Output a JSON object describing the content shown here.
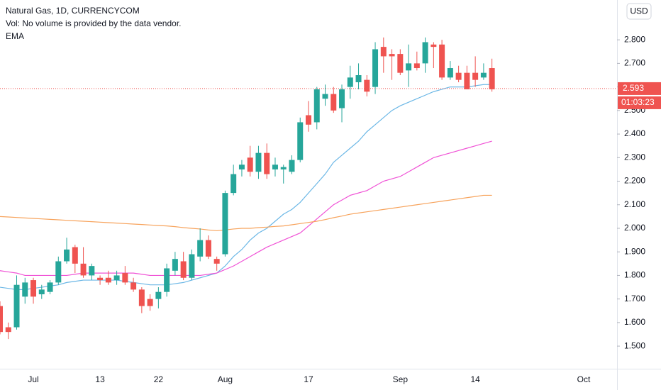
{
  "chart_data": {
    "type": "candlestick",
    "title": "Natural Gas, 1D, CURRENCYCOM",
    "volume_note": "Vol: No volume is provided by the data vendor.",
    "indicator": "EMA",
    "currency": "USD",
    "categories": [
      null,
      null,
      null,
      null,
      "Jul",
      null,
      null,
      null,
      null,
      null,
      null,
      null,
      "13",
      null,
      null,
      null,
      null,
      null,
      null,
      "22",
      null,
      null,
      null,
      null,
      null,
      null,
      null,
      "Aug",
      null,
      null,
      null,
      null,
      null,
      null,
      null,
      null,
      null,
      "17",
      null,
      null,
      null,
      null,
      null,
      null,
      null,
      null,
      null,
      null,
      "Sep",
      null,
      null,
      null,
      null,
      null,
      null,
      null,
      null,
      "14",
      null,
      null,
      null,
      null,
      null,
      null,
      null,
      null,
      null,
      null,
      null,
      null,
      "Oct",
      null,
      null,
      null
    ],
    "open": [
      1.67,
      1.58,
      1.58,
      1.71,
      1.78,
      1.72,
      1.73,
      1.77,
      1.86,
      1.92,
      1.85,
      1.8,
      1.79,
      1.79,
      1.78,
      1.81,
      1.77,
      1.74,
      1.7,
      1.7,
      1.73,
      1.82,
      1.86,
      1.79,
      1.88,
      1.95,
      1.87,
      1.89,
      2.15,
      2.25,
      2.3,
      2.24,
      2.32,
      2.25,
      2.25,
      2.24,
      2.29,
      2.48,
      2.45,
      2.55,
      2.57,
      2.51,
      2.6,
      2.62,
      2.63,
      2.6,
      2.77,
      2.74,
      2.74,
      2.67,
      2.7,
      2.7,
      2.78,
      2.78,
      2.64,
      2.66,
      2.66,
      2.66,
      2.64,
      2.68,
      null,
      null,
      null,
      null,
      null,
      null,
      null,
      null,
      null,
      null,
      null,
      null,
      null,
      null
    ],
    "high": [
      1.69,
      1.6,
      1.8,
      1.79,
      1.79,
      1.76,
      1.78,
      1.88,
      1.96,
      1.93,
      1.92,
      1.85,
      1.8,
      1.82,
      1.82,
      1.84,
      1.79,
      1.75,
      1.72,
      1.75,
      1.85,
      1.9,
      1.9,
      1.91,
      2.0,
      1.97,
      1.88,
      2.16,
      2.27,
      2.29,
      2.35,
      2.35,
      2.36,
      2.3,
      2.27,
      2.31,
      2.47,
      2.54,
      2.6,
      2.61,
      2.6,
      2.61,
      2.69,
      2.7,
      2.65,
      2.79,
      2.81,
      2.76,
      2.76,
      2.78,
      2.75,
      2.81,
      2.79,
      2.8,
      2.71,
      2.69,
      2.69,
      2.73,
      2.7,
      2.72,
      null,
      null,
      null,
      null,
      null,
      null,
      null,
      null,
      null,
      null,
      null,
      null,
      null,
      null
    ],
    "low": [
      1.55,
      1.53,
      1.57,
      1.68,
      1.68,
      1.7,
      1.72,
      1.76,
      1.85,
      1.81,
      1.79,
      1.78,
      1.76,
      1.76,
      1.76,
      1.76,
      1.73,
      1.64,
      1.65,
      1.66,
      1.71,
      1.8,
      1.78,
      1.78,
      1.86,
      1.87,
      1.82,
      1.88,
      2.14,
      2.22,
      2.22,
      2.21,
      2.21,
      2.22,
      2.19,
      2.23,
      2.28,
      2.41,
      2.42,
      2.52,
      2.49,
      2.45,
      2.55,
      2.59,
      2.56,
      2.57,
      2.66,
      2.63,
      2.65,
      2.6,
      2.67,
      2.66,
      2.68,
      2.63,
      2.63,
      2.62,
      2.59,
      2.6,
      2.63,
      2.58,
      null,
      null,
      null,
      null,
      null,
      null,
      null,
      null,
      null,
      null,
      null,
      null,
      null,
      null
    ],
    "close": [
      1.56,
      1.56,
      1.76,
      1.77,
      1.71,
      1.74,
      1.77,
      1.86,
      1.91,
      1.85,
      1.8,
      1.84,
      1.78,
      1.77,
      1.8,
      1.77,
      1.74,
      1.67,
      1.67,
      1.73,
      1.83,
      1.87,
      1.79,
      1.89,
      1.95,
      1.88,
      1.85,
      2.15,
      2.23,
      2.27,
      2.24,
      2.32,
      2.23,
      2.27,
      2.26,
      2.29,
      2.45,
      2.44,
      2.59,
      2.57,
      2.5,
      2.59,
      2.64,
      2.65,
      2.58,
      2.76,
      2.73,
      2.73,
      2.66,
      2.7,
      2.68,
      2.79,
      2.77,
      2.64,
      2.68,
      2.63,
      2.59,
      2.63,
      2.66,
      2.59,
      null,
      null,
      null,
      null,
      null,
      null,
      null,
      null,
      null,
      null,
      null,
      null,
      null,
      null
    ],
    "up_color": "#26a69a",
    "down_color": "#ef5350",
    "series": [
      {
        "color": "#6bb7e6",
        "values": [
          1.75,
          1.745,
          1.74,
          1.74,
          1.745,
          1.75,
          1.755,
          1.76,
          1.77,
          1.775,
          1.78,
          1.78,
          1.78,
          1.78,
          1.78,
          1.775,
          1.77,
          1.765,
          1.76,
          1.76,
          1.76,
          1.765,
          1.77,
          1.78,
          1.79,
          1.8,
          1.81,
          1.84,
          1.88,
          1.91,
          1.95,
          1.98,
          2.0,
          2.03,
          2.06,
          2.08,
          2.11,
          2.15,
          2.19,
          2.23,
          2.28,
          2.31,
          2.34,
          2.37,
          2.41,
          2.44,
          2.47,
          2.5,
          2.52,
          2.535,
          2.55,
          2.565,
          2.58,
          2.59,
          2.6,
          2.6,
          2.6,
          2.605,
          2.61,
          2.61,
          null,
          null,
          null,
          null,
          null,
          null,
          null,
          null,
          null,
          null,
          null,
          null,
          null,
          null
        ]
      },
      {
        "color": "#f052d6",
        "values": [
          1.82,
          1.815,
          1.81,
          1.8,
          1.8,
          1.8,
          1.8,
          1.8,
          1.8,
          1.805,
          1.81,
          1.81,
          1.81,
          1.81,
          1.81,
          1.81,
          1.81,
          1.805,
          1.8,
          1.8,
          1.8,
          1.8,
          1.8,
          1.8,
          1.8,
          1.805,
          1.81,
          1.825,
          1.84,
          1.86,
          1.88,
          1.9,
          1.92,
          1.935,
          1.95,
          1.965,
          1.98,
          2.01,
          2.04,
          2.07,
          2.1,
          2.12,
          2.14,
          2.15,
          2.16,
          2.18,
          2.2,
          2.21,
          2.22,
          2.24,
          2.26,
          2.28,
          2.3,
          2.31,
          2.32,
          2.33,
          2.34,
          2.35,
          2.36,
          2.37,
          null,
          null,
          null,
          null,
          null,
          null,
          null,
          null,
          null,
          null,
          null,
          null,
          null,
          null
        ]
      },
      {
        "color": "#f7a35c",
        "values": [
          2.05,
          2.048,
          2.046,
          2.044,
          2.042,
          2.04,
          2.038,
          2.036,
          2.034,
          2.032,
          2.03,
          2.028,
          2.026,
          2.024,
          2.022,
          2.02,
          2.018,
          2.016,
          2.014,
          2.012,
          2.01,
          2.007,
          2.003,
          2.0,
          1.997,
          1.993,
          1.99,
          1.993,
          1.997,
          2.0,
          2.0,
          2.003,
          2.005,
          2.008,
          2.01,
          2.015,
          2.02,
          2.025,
          2.03,
          2.037,
          2.045,
          2.052,
          2.06,
          2.065,
          2.07,
          2.075,
          2.08,
          2.085,
          2.09,
          2.095,
          2.1,
          2.105,
          2.11,
          2.115,
          2.12,
          2.125,
          2.13,
          2.135,
          2.14,
          2.14,
          null,
          null,
          null,
          null,
          null,
          null,
          null,
          null,
          null,
          null,
          null,
          null,
          null,
          null
        ]
      }
    ],
    "ylim": [
      1.404,
      2.969
    ],
    "yticks": [
      {
        "value": 1.5,
        "label": "1.500"
      },
      {
        "value": 1.6,
        "label": "1.600"
      },
      {
        "value": 1.7,
        "label": "1.700"
      },
      {
        "value": 1.8,
        "label": "1.800"
      },
      {
        "value": 1.9,
        "label": "1.900"
      },
      {
        "value": 2.0,
        "label": "2.000"
      },
      {
        "value": 2.1,
        "label": "2.100"
      },
      {
        "value": 2.2,
        "label": "2.200"
      },
      {
        "value": 2.3,
        "label": "2.300"
      },
      {
        "value": 2.4,
        "label": "2.400"
      },
      {
        "value": 2.5,
        "label": "2.500"
      },
      {
        "value": 2.6,
        "label": "2.600"
      },
      {
        "value": 2.7,
        "label": "2.700"
      },
      {
        "value": 2.8,
        "label": "2.800"
      }
    ],
    "last_price": 2.593,
    "countdown": "01:03:23",
    "grid": false
  }
}
